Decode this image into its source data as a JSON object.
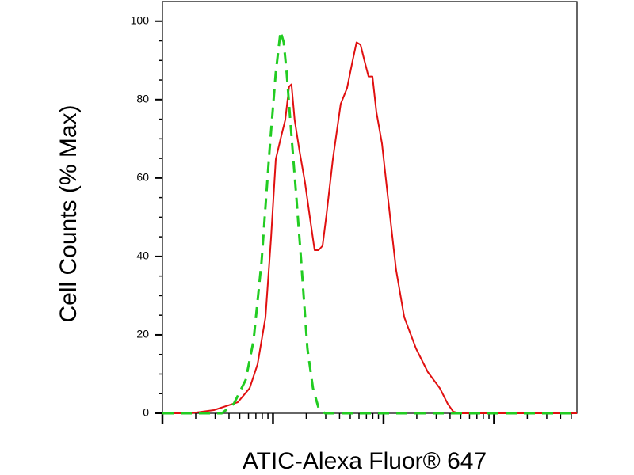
{
  "chart_data": {
    "type": "line",
    "xlabel": "ATIC-Alexa Fluor® 647",
    "ylabel": "Cell Counts (% Max)",
    "xscale": "log",
    "xlim": [
      1,
      5623
    ],
    "xticks": [
      1,
      10,
      100,
      1000
    ],
    "ylim": [
      0,
      105
    ],
    "yticks": [
      0,
      20,
      40,
      60,
      80,
      100
    ],
    "series": [
      {
        "color": "#e01010",
        "dash": false,
        "x": [
          1,
          1.78,
          2.92,
          4.8,
          6.15,
          7.25,
          8.55,
          9.6,
          10.6,
          11.9,
          12.9,
          14.0,
          14.7,
          15.7,
          17.4,
          19.5,
          21.9,
          23.8,
          25.8,
          28.1,
          30.5,
          34.8,
          41.0,
          46.8,
          52.5,
          57.0,
          61.9,
          67.3,
          73.1,
          79.4,
          86.1,
          96.8,
          110,
          130,
          154,
          197,
          252,
          323,
          381,
          428,
          488,
          5623
        ],
        "values": [
          0,
          0,
          0.8,
          2.8,
          6.4,
          12.5,
          24.5,
          44.7,
          64.8,
          70.8,
          74.8,
          83.3,
          83.9,
          74.8,
          66.8,
          58.8,
          48.7,
          41.6,
          41.6,
          42.7,
          50.7,
          64.8,
          78.9,
          82.9,
          89.9,
          94.6,
          94.0,
          89.9,
          85.9,
          85.9,
          76.9,
          68.8,
          54.7,
          36.6,
          24.5,
          16.5,
          10.5,
          6.4,
          2.4,
          0.4,
          0,
          0
        ]
      },
      {
        "color": "#22cc22",
        "dash": true,
        "x": [
          1,
          3.45,
          4.42,
          5.66,
          6.67,
          7.87,
          9.29,
          10.6,
          11.7,
          12.5,
          13.3,
          14.7,
          16.3,
          18.0,
          20.5,
          23.0,
          25.8,
          29.5,
          34.8,
          5623
        ],
        "values": [
          0,
          0,
          2.4,
          8.5,
          18.5,
          38.6,
          66.8,
          86.9,
          97.4,
          94.6,
          86.9,
          70.8,
          54.7,
          38.6,
          16.5,
          6.4,
          1.4,
          0,
          0,
          0
        ]
      }
    ]
  }
}
